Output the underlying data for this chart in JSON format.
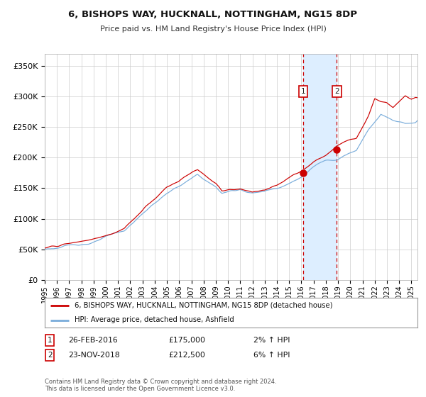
{
  "title": "6, BISHOPS WAY, HUCKNALL, NOTTINGHAM, NG15 8DP",
  "subtitle": "Price paid vs. HM Land Registry's House Price Index (HPI)",
  "ylim": [
    0,
    370000
  ],
  "xlim_start": 1995.0,
  "xlim_end": 2025.5,
  "yticks": [
    0,
    50000,
    100000,
    150000,
    200000,
    250000,
    300000,
    350000
  ],
  "ytick_labels": [
    "£0",
    "£50K",
    "£100K",
    "£150K",
    "£200K",
    "£250K",
    "£300K",
    "£350K"
  ],
  "xtick_years": [
    1995,
    1996,
    1997,
    1998,
    1999,
    2000,
    2001,
    2002,
    2003,
    2004,
    2005,
    2006,
    2007,
    2008,
    2009,
    2010,
    2011,
    2012,
    2013,
    2014,
    2015,
    2016,
    2017,
    2018,
    2019,
    2020,
    2021,
    2022,
    2023,
    2024,
    2025
  ],
  "red_line_color": "#cc0000",
  "blue_line_color": "#7aaddb",
  "point1_date": 2016.15,
  "point1_value": 175000,
  "point2_date": 2018.9,
  "point2_value": 212500,
  "shade_start": 2016.15,
  "shade_end": 2018.9,
  "shade_color": "#ddeeff",
  "grid_color": "#cccccc",
  "background_color": "#ffffff",
  "legend_red_label": "6, BISHOPS WAY, HUCKNALL, NOTTINGHAM, NG15 8DP (detached house)",
  "legend_blue_label": "HPI: Average price, detached house, Ashfield",
  "footnote": "Contains HM Land Registry data © Crown copyright and database right 2024.\nThis data is licensed under the Open Government Licence v3.0.",
  "table_row1": [
    "1",
    "26-FEB-2016",
    "£175,000",
    "2% ↑ HPI"
  ],
  "table_row2": [
    "2",
    "23-NOV-2018",
    "£212,500",
    "6% ↑ HPI"
  ]
}
